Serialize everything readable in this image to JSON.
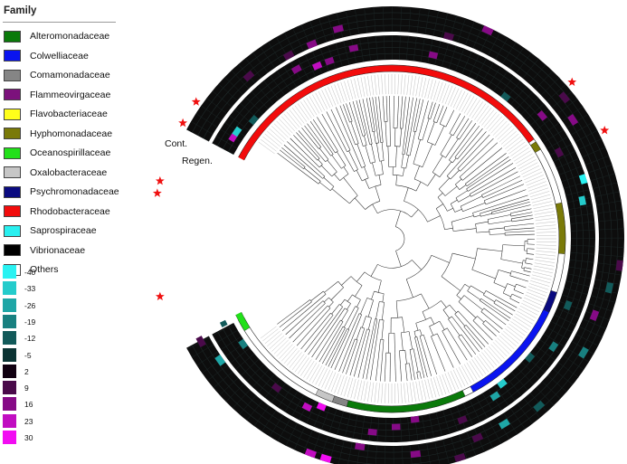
{
  "legend": {
    "title": "Family",
    "families": [
      {
        "name": "Alteromonadaceae",
        "color": "#0a7a0a"
      },
      {
        "name": "Colwelliaceae",
        "color": "#0a14f0"
      },
      {
        "name": "Comamonadaceae",
        "color": "#858585"
      },
      {
        "name": "Flammeovirgaceae",
        "color": "#7c117c"
      },
      {
        "name": "Flavobacteriaceae",
        "color": "#ffff1a"
      },
      {
        "name": "Hyphomonadaceae",
        "color": "#7a7a08"
      },
      {
        "name": "Oceanospirillaceae",
        "color": "#22e01a"
      },
      {
        "name": "Oxalobacteraceae",
        "color": "#c6c6c6"
      },
      {
        "name": "Psychromonadaceae",
        "color": "#0a0a80"
      },
      {
        "name": "Rhodobacteraceae",
        "color": "#f20c0c"
      },
      {
        "name": "Saprospiraceae",
        "color": "#29f0f0"
      },
      {
        "name": "Vibrionaceae",
        "color": "#000000"
      },
      {
        "name": "Others",
        "color": "#ffffff"
      }
    ]
  },
  "scale": {
    "labels": [
      "-40",
      "-33",
      "-26",
      "-19",
      "-12",
      "-5",
      "2",
      "9",
      "16",
      "23",
      "30"
    ],
    "colors": [
      "#2af2f2",
      "#24cccc",
      "#1ea6a6",
      "#188080",
      "#125a5a",
      "#0c3434",
      "#110011",
      "#4a0a4a",
      "#860a86",
      "#c10dc1",
      "#f20cf2"
    ]
  },
  "rings": {
    "outer_label": "Cont.",
    "inner_label": "Regen."
  },
  "family_arcs": [
    {
      "family": "Saprospiraceae",
      "start": -105,
      "end": -117
    },
    {
      "family": "Flavobacteriaceae",
      "start": -150,
      "end": -176
    },
    {
      "family": "Flammeovirgaceae",
      "start": -177,
      "end": -185
    },
    {
      "family": "Alteromonadaceae",
      "start": -186,
      "end": -195
    },
    {
      "family": "Oceanospirillaceae",
      "start": -198,
      "end": -212
    },
    {
      "family": "Oxalobacteraceae",
      "start": -244,
      "end": -250
    },
    {
      "family": "Comamonadaceae",
      "start": -250,
      "end": -255
    },
    {
      "family": "Alteromonadaceae",
      "start": -255,
      "end": -295
    },
    {
      "family": "Colwelliaceae",
      "start": -298,
      "end": -335
    },
    {
      "family": "Psychromonadaceae",
      "start": -335,
      "end": -342
    },
    {
      "family": "Hyphomonadaceae",
      "start": -355,
      "end": -372
    },
    {
      "family": "Hyphomonadaceae",
      "start": -391,
      "end": -394
    },
    {
      "family": "Rhodobacteraceae",
      "start": -395,
      "end": -530
    }
  ],
  "starred_angles": [
    -257,
    -194,
    -169,
    -166,
    -151,
    -145,
    -41,
    -27
  ],
  "heat_cells": [
    {
      "ring": "outer",
      "angle": -103,
      "level": 8,
      "band": 1
    },
    {
      "ring": "outer",
      "angle": -111,
      "level": 8,
      "band": 0
    },
    {
      "ring": "outer",
      "angle": -118,
      "level": 7,
      "band": 0
    },
    {
      "ring": "outer",
      "angle": -130,
      "level": 7,
      "band": 1
    },
    {
      "ring": "outer",
      "angle": -160,
      "level": 7,
      "band": 2
    },
    {
      "ring": "outer",
      "angle": -172,
      "level": 9,
      "band": 2
    },
    {
      "ring": "outer",
      "angle": -178,
      "level": 8,
      "band": 2
    },
    {
      "ring": "outer",
      "angle": -190,
      "level": 7,
      "band": 1
    },
    {
      "ring": "outer",
      "angle": -201,
      "level": 8,
      "band": 2
    },
    {
      "ring": "outer",
      "angle": -207,
      "level": 7,
      "band": 1
    },
    {
      "ring": "outer",
      "angle": -214,
      "level": 2,
      "band": 0
    },
    {
      "ring": "outer",
      "angle": -248,
      "level": 9,
      "band": 3
    },
    {
      "ring": "outer",
      "angle": -252,
      "level": 10,
      "band": 3
    },
    {
      "ring": "outer",
      "angle": -260,
      "level": 8,
      "band": 0
    },
    {
      "ring": "outer",
      "angle": -268,
      "level": 8,
      "band": 3
    },
    {
      "ring": "outer",
      "angle": -275,
      "level": 8,
      "band": 1
    },
    {
      "ring": "outer",
      "angle": -286,
      "level": 7,
      "band": 3
    },
    {
      "ring": "outer",
      "angle": -292,
      "level": 7,
      "band": 1
    },
    {
      "ring": "outer",
      "angle": -300,
      "level": 2,
      "band": 1
    },
    {
      "ring": "outer",
      "angle": -310,
      "level": 4,
      "band": 2
    },
    {
      "ring": "outer",
      "angle": -328,
      "level": 3,
      "band": 2
    },
    {
      "ring": "outer",
      "angle": -338,
      "level": 8,
      "band": 1
    },
    {
      "ring": "outer",
      "angle": -346,
      "level": 4,
      "band": 2
    },
    {
      "ring": "outer",
      "angle": -352,
      "level": 7,
      "band": 3
    },
    {
      "ring": "outer",
      "angle": -392,
      "level": 8,
      "band": 1
    },
    {
      "ring": "outer",
      "angle": -398,
      "level": 7,
      "band": 2
    },
    {
      "ring": "outer",
      "angle": -424,
      "level": 8,
      "band": 3
    },
    {
      "ring": "outer",
      "angle": -433,
      "level": 7,
      "band": 0
    },
    {
      "ring": "outer",
      "angle": -520,
      "level": 7,
      "band": 2
    },
    {
      "ring": "inner",
      "angle": -100,
      "level": 8,
      "band": 2
    },
    {
      "ring": "inner",
      "angle": -108,
      "level": 8,
      "band": 1
    },
    {
      "ring": "inner",
      "angle": -112,
      "level": 9,
      "band": 1
    },
    {
      "ring": "inner",
      "angle": -118,
      "level": 8,
      "band": 2
    },
    {
      "ring": "inner",
      "angle": -138,
      "level": 4,
      "band": 0
    },
    {
      "ring": "inner",
      "angle": -146,
      "level": 9,
      "band": 1
    },
    {
      "ring": "inner",
      "angle": -153,
      "level": 7,
      "band": 2
    },
    {
      "ring": "inner",
      "angle": -166,
      "level": 8,
      "band": 1
    },
    {
      "ring": "inner",
      "angle": -190,
      "level": 7,
      "band": 2
    },
    {
      "ring": "inner",
      "angle": -205,
      "level": 4,
      "band": 1
    },
    {
      "ring": "inner",
      "angle": -214,
      "level": 3,
      "band": 0
    },
    {
      "ring": "inner",
      "angle": -231,
      "level": 7,
      "band": 1
    },
    {
      "ring": "inner",
      "angle": -242,
      "level": 9,
      "band": 1
    },
    {
      "ring": "inner",
      "angle": -246,
      "level": 10,
      "band": 0
    },
    {
      "ring": "inner",
      "angle": -263,
      "level": 8,
      "band": 2
    },
    {
      "ring": "inner",
      "angle": -270,
      "level": 8,
      "band": 1
    },
    {
      "ring": "inner",
      "angle": -276,
      "level": 8,
      "band": 0
    },
    {
      "ring": "inner",
      "angle": -290,
      "level": 7,
      "band": 2
    },
    {
      "ring": "inner",
      "angle": -302,
      "level": 2,
      "band": 1
    },
    {
      "ring": "inner",
      "angle": -306,
      "level": 1,
      "band": 0
    },
    {
      "ring": "inner",
      "angle": -318,
      "level": 4,
      "band": 0
    },
    {
      "ring": "inner",
      "angle": -325,
      "level": 3,
      "band": 2
    },
    {
      "ring": "inner",
      "angle": -338,
      "level": 4,
      "band": 1
    },
    {
      "ring": "inner",
      "angle": -370,
      "level": 1,
      "band": 2
    },
    {
      "ring": "inner",
      "angle": -376,
      "level": 0,
      "band": 3
    },
    {
      "ring": "inner",
      "angle": -386,
      "level": 7,
      "band": 1
    },
    {
      "ring": "inner",
      "angle": -398,
      "level": 8,
      "band": 2
    },
    {
      "ring": "inner",
      "angle": -410,
      "level": 4,
      "band": 0
    },
    {
      "ring": "inner",
      "angle": -436,
      "level": 8,
      "band": 1
    },
    {
      "ring": "inner",
      "angle": -504,
      "level": 1,
      "band": 1
    },
    {
      "ring": "inner",
      "angle": -512,
      "level": 4,
      "band": 0
    }
  ]
}
